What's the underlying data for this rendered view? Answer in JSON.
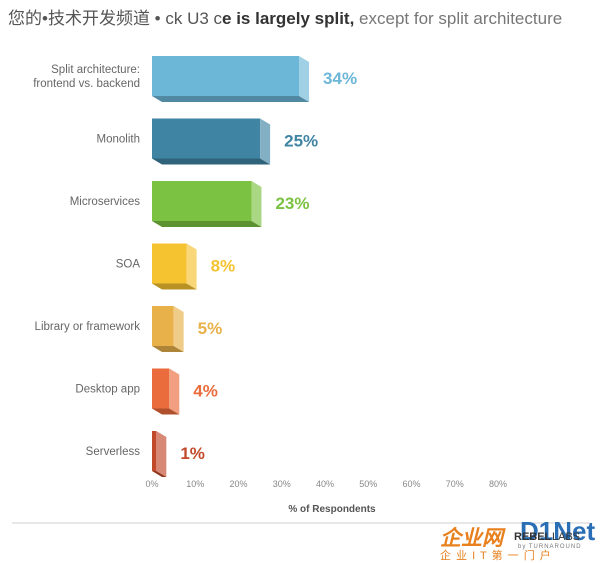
{
  "chart_data": {
    "type": "bar",
    "orientation": "horizontal",
    "title_lead": "您的•技术开发频道 • ck U3 c",
    "title_bold": "e is largely split,",
    "title_rest": " except for split architecture",
    "categories": [
      "Split architecture: frontend vs. backend",
      "Monolith",
      "Microservices",
      "SOA",
      "Library or framework",
      "Desktop app",
      "Serverless"
    ],
    "category_lines": [
      [
        "Split architecture:",
        "frontend vs. backend"
      ],
      [
        "Monolith"
      ],
      [
        "Microservices"
      ],
      [
        "SOA"
      ],
      [
        "Library or framework"
      ],
      [
        "Desktop app"
      ],
      [
        "Serverless"
      ]
    ],
    "values": [
      34,
      25,
      23,
      8,
      5,
      4,
      1
    ],
    "value_labels": [
      "34%",
      "25%",
      "23%",
      "8%",
      "5%",
      "4%",
      "1%"
    ],
    "colors": [
      "#6cb6d8",
      "#3f84a3",
      "#7cc242",
      "#f5c230",
      "#e8b14a",
      "#ea6b3b",
      "#c14a2b"
    ],
    "xlim": [
      0,
      80
    ],
    "xticks": [
      0,
      10,
      20,
      30,
      40,
      50,
      60,
      70,
      80
    ],
    "xtick_labels": [
      "0%",
      "10%",
      "20%",
      "30%",
      "40%",
      "50%",
      "60%",
      "70%",
      "80%"
    ],
    "xlabel": "% of Respondents",
    "grid": false
  },
  "brand": {
    "cn_logo": "企业网",
    "dnet": "D1Net",
    "cn_sub": "企 业 I T 第 一 门 户",
    "rebel": "REBEL",
    "labs": "LABS",
    "by": "by TURNAROUND"
  }
}
